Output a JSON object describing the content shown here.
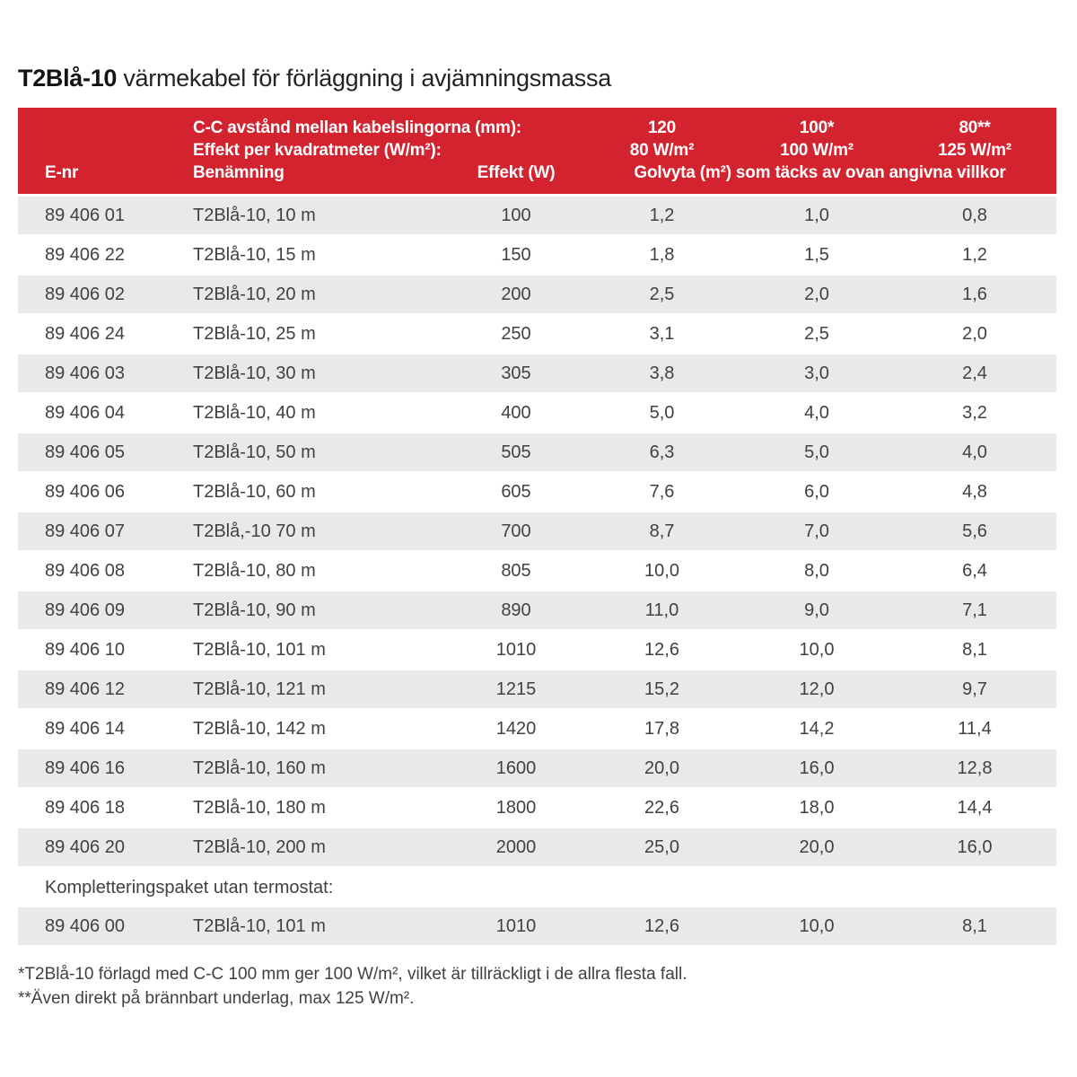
{
  "title": {
    "product": "T2Blå-10",
    "subtitle": " värmekabel för förläggning i avjämningsmassa"
  },
  "colors": {
    "header_red": "#d2232f",
    "row_stripe_gray": "#e9e9ea",
    "text_gray": "#414042"
  },
  "table": {
    "header": {
      "cc_line": "C-C avstånd mellan kabelslingorna (mm):",
      "effect_line": "Effekt per kvadratmeter (W/m²):",
      "enr": "E-nr",
      "benamning": "Benämning",
      "effekt": "Effekt (W)",
      "spacing_120": "120",
      "spacing_100": "100*",
      "spacing_80": "80**",
      "power_80": "80 W/m²",
      "power_100": "100 W/m²",
      "power_125": "125 W/m²",
      "golvyta": "Golvyta (m²) som täcks av ovan angivna villkor"
    },
    "rows": [
      {
        "enr": "89 406 01",
        "name": "T2Blå-10, 10 m",
        "effekt": "100",
        "area_120": "1,2",
        "area_100": "1,0",
        "area_80": "0,8"
      },
      {
        "enr": "89 406 22",
        "name": "T2Blå-10, 15 m",
        "effekt": "150",
        "area_120": "1,8",
        "area_100": "1,5",
        "area_80": "1,2"
      },
      {
        "enr": "89 406 02",
        "name": "T2Blå-10, 20 m",
        "effekt": "200",
        "area_120": "2,5",
        "area_100": "2,0",
        "area_80": "1,6"
      },
      {
        "enr": "89 406 24",
        "name": "T2Blå-10, 25 m",
        "effekt": "250",
        "area_120": "3,1",
        "area_100": "2,5",
        "area_80": "2,0"
      },
      {
        "enr": "89 406 03",
        "name": "T2Blå-10, 30 m",
        "effekt": "305",
        "area_120": "3,8",
        "area_100": "3,0",
        "area_80": "2,4"
      },
      {
        "enr": "89 406 04",
        "name": "T2Blå-10, 40 m",
        "effekt": "400",
        "area_120": "5,0",
        "area_100": "4,0",
        "area_80": "3,2"
      },
      {
        "enr": "89 406 05",
        "name": "T2Blå-10, 50 m",
        "effekt": "505",
        "area_120": "6,3",
        "area_100": "5,0",
        "area_80": "4,0"
      },
      {
        "enr": "89 406 06",
        "name": "T2Blå-10, 60 m",
        "effekt": "605",
        "area_120": "7,6",
        "area_100": "6,0",
        "area_80": "4,8"
      },
      {
        "enr": "89 406 07",
        "name": "T2Blå,-10 70 m",
        "effekt": "700",
        "area_120": "8,7",
        "area_100": "7,0",
        "area_80": "5,6"
      },
      {
        "enr": "89 406 08",
        "name": "T2Blå-10, 80 m",
        "effekt": "805",
        "area_120": "10,0",
        "area_100": "8,0",
        "area_80": "6,4"
      },
      {
        "enr": "89 406 09",
        "name": "T2Blå-10, 90 m",
        "effekt": "890",
        "area_120": "11,0",
        "area_100": "9,0",
        "area_80": "7,1"
      },
      {
        "enr": "89 406 10",
        "name": "T2Blå-10, 101 m",
        "effekt": "1010",
        "area_120": "12,6",
        "area_100": "10,0",
        "area_80": "8,1"
      },
      {
        "enr": "89 406 12",
        "name": "T2Blå-10, 121 m",
        "effekt": "1215",
        "area_120": "15,2",
        "area_100": "12,0",
        "area_80": "9,7"
      },
      {
        "enr": "89 406 14",
        "name": "T2Blå-10, 142 m",
        "effekt": "1420",
        "area_120": "17,8",
        "area_100": "14,2",
        "area_80": "11,4"
      },
      {
        "enr": "89 406 16",
        "name": "T2Blå-10, 160 m",
        "effekt": "1600",
        "area_120": "20,0",
        "area_100": "16,0",
        "area_80": "12,8"
      },
      {
        "enr": "89 406 18",
        "name": "T2Blå-10, 180 m",
        "effekt": "1800",
        "area_120": "22,6",
        "area_100": "18,0",
        "area_80": "14,4"
      },
      {
        "enr": "89 406 20",
        "name": "T2Blå-10, 200 m",
        "effekt": "2000",
        "area_120": "25,0",
        "area_100": "20,0",
        "area_80": "16,0"
      }
    ],
    "section_label": "Kompletteringspaket utan termostat:",
    "complement_row": {
      "enr": "89 406 00",
      "name": "T2Blå-10, 101 m",
      "effekt": "1010",
      "area_120": "12,6",
      "area_100": "10,0",
      "area_80": "8,1"
    }
  },
  "footnotes": [
    "*T2Blå-10 förlagd med C-C 100 mm ger 100 W/m², vilket är tillräckligt i de allra flesta fall.",
    "**Även direkt på brännbart underlag, max 125 W/m²."
  ]
}
